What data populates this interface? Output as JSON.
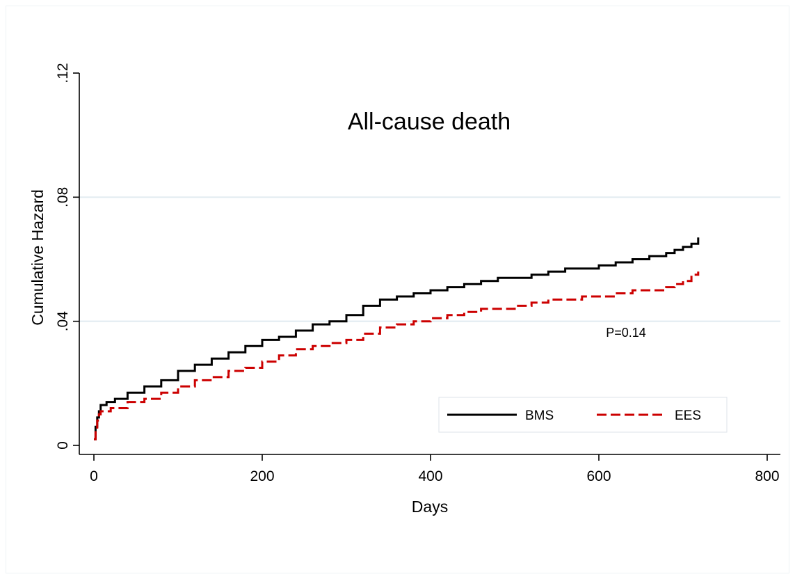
{
  "chart_data": {
    "type": "line",
    "title": "All-cause death",
    "xlabel": "Days",
    "ylabel": "Cumulative Hazard",
    "xlim": [
      0,
      800
    ],
    "ylim": [
      0,
      0.12
    ],
    "x_ticks": [
      0,
      200,
      400,
      600,
      800
    ],
    "x_tick_labels": [
      "0",
      "200",
      "400",
      "600",
      "800"
    ],
    "y_ticks": [
      0,
      0.04,
      0.08,
      0.12
    ],
    "y_tick_labels": [
      "0",
      ".04",
      ".08",
      ".12"
    ],
    "grid": "horizontal",
    "legend_position": "bottom-right",
    "annotation": "P=0.14",
    "series": [
      {
        "name": "BMS",
        "color": "#000000",
        "style": "solid",
        "step": true,
        "points": [
          [
            0,
            0.002
          ],
          [
            2,
            0.006
          ],
          [
            4,
            0.009
          ],
          [
            6,
            0.011
          ],
          [
            8,
            0.013
          ],
          [
            15,
            0.014
          ],
          [
            25,
            0.015
          ],
          [
            40,
            0.017
          ],
          [
            60,
            0.019
          ],
          [
            80,
            0.021
          ],
          [
            100,
            0.024
          ],
          [
            120,
            0.026
          ],
          [
            140,
            0.028
          ],
          [
            160,
            0.03
          ],
          [
            180,
            0.032
          ],
          [
            200,
            0.034
          ],
          [
            220,
            0.035
          ],
          [
            240,
            0.037
          ],
          [
            260,
            0.039
          ],
          [
            280,
            0.04
          ],
          [
            300,
            0.042
          ],
          [
            320,
            0.045
          ],
          [
            340,
            0.047
          ],
          [
            360,
            0.048
          ],
          [
            380,
            0.049
          ],
          [
            400,
            0.05
          ],
          [
            420,
            0.051
          ],
          [
            440,
            0.052
          ],
          [
            460,
            0.053
          ],
          [
            480,
            0.054
          ],
          [
            500,
            0.054
          ],
          [
            520,
            0.055
          ],
          [
            540,
            0.056
          ],
          [
            560,
            0.057
          ],
          [
            580,
            0.057
          ],
          [
            600,
            0.058
          ],
          [
            620,
            0.059
          ],
          [
            640,
            0.06
          ],
          [
            660,
            0.061
          ],
          [
            680,
            0.062
          ],
          [
            690,
            0.063
          ],
          [
            700,
            0.064
          ],
          [
            710,
            0.065
          ],
          [
            718,
            0.067
          ]
        ]
      },
      {
        "name": "EES",
        "color": "#cc0000",
        "style": "dashed",
        "step": true,
        "points": [
          [
            0,
            0.002
          ],
          [
            2,
            0.005
          ],
          [
            4,
            0.008
          ],
          [
            6,
            0.01
          ],
          [
            8,
            0.011
          ],
          [
            20,
            0.012
          ],
          [
            40,
            0.014
          ],
          [
            60,
            0.015
          ],
          [
            80,
            0.017
          ],
          [
            100,
            0.019
          ],
          [
            120,
            0.021
          ],
          [
            140,
            0.022
          ],
          [
            160,
            0.024
          ],
          [
            180,
            0.025
          ],
          [
            200,
            0.027
          ],
          [
            220,
            0.029
          ],
          [
            240,
            0.031
          ],
          [
            260,
            0.032
          ],
          [
            280,
            0.033
          ],
          [
            300,
            0.034
          ],
          [
            320,
            0.036
          ],
          [
            340,
            0.038
          ],
          [
            360,
            0.039
          ],
          [
            380,
            0.04
          ],
          [
            400,
            0.041
          ],
          [
            420,
            0.042
          ],
          [
            440,
            0.043
          ],
          [
            460,
            0.044
          ],
          [
            480,
            0.044
          ],
          [
            500,
            0.045
          ],
          [
            520,
            0.046
          ],
          [
            540,
            0.047
          ],
          [
            560,
            0.047
          ],
          [
            580,
            0.048
          ],
          [
            600,
            0.048
          ],
          [
            620,
            0.049
          ],
          [
            640,
            0.05
          ],
          [
            660,
            0.05
          ],
          [
            680,
            0.051
          ],
          [
            690,
            0.052
          ],
          [
            700,
            0.053
          ],
          [
            710,
            0.055
          ],
          [
            718,
            0.056
          ]
        ]
      }
    ]
  }
}
